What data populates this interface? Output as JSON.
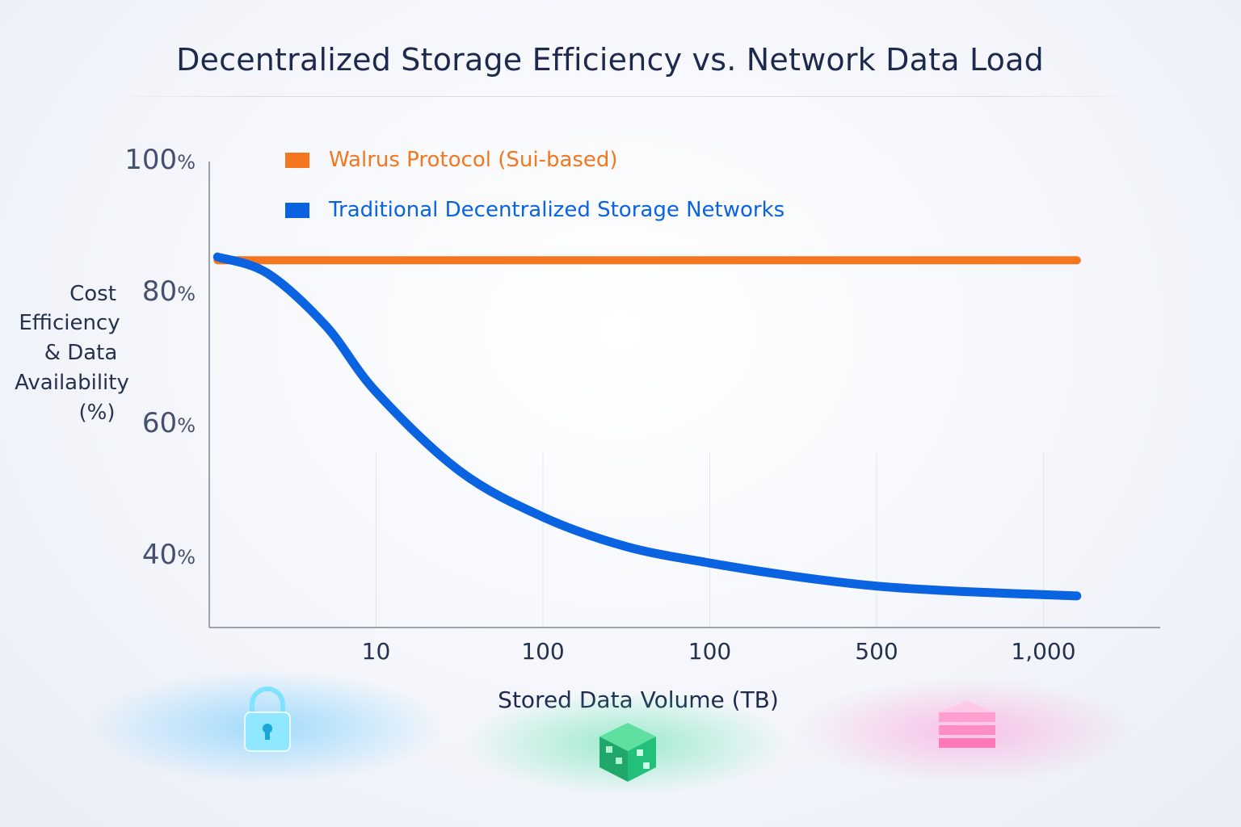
{
  "chart_data": {
    "type": "line",
    "title": "Decentralized Storage Efficiency vs. Network Data Load",
    "xlabel": "Stored Data Volume (TB)",
    "ylabel_lines": [
      "Cost",
      "Efficiency",
      "& Data",
      "Availability",
      "(%)"
    ],
    "x_tick_labels": [
      "10",
      "100",
      "100",
      "500",
      "1,000"
    ],
    "y_ticks": [
      {
        "value": 100,
        "num": "100",
        "unit": "%"
      },
      {
        "value": 80,
        "num": "80",
        "unit": "%"
      },
      {
        "value": 60,
        "num": "60",
        "unit": "%"
      },
      {
        "value": 40,
        "num": "40",
        "unit": "%"
      }
    ],
    "ylim": [
      30,
      100
    ],
    "grid": true,
    "legend_position": "top-left",
    "series": [
      {
        "name": "Walrus Protocol (Sui-based)",
        "color": "#f47720",
        "x_tick_positions": [
          0.05,
          1,
          2,
          3,
          4,
          5.2
        ],
        "values": [
          85,
          85,
          85,
          85,
          85,
          85
        ]
      },
      {
        "name": "Traditional Decentralized Storage Networks",
        "color": "#0a63e0",
        "x_tick_positions": [
          0.05,
          0.35,
          0.7,
          1,
          1.5,
          2,
          2.5,
          3,
          3.5,
          4,
          4.5,
          5.2
        ],
        "values": [
          85.5,
          83,
          75,
          65,
          53,
          46,
          41.5,
          39,
          37,
          35.5,
          34.7,
          34
        ]
      }
    ]
  },
  "decor": {
    "icons": [
      "lock-icon",
      "cube-icon",
      "stack-icon"
    ],
    "colors": {
      "cyan": "#4fd8ff",
      "green": "#2ecf8a",
      "pink": "#ff7ac8"
    }
  }
}
